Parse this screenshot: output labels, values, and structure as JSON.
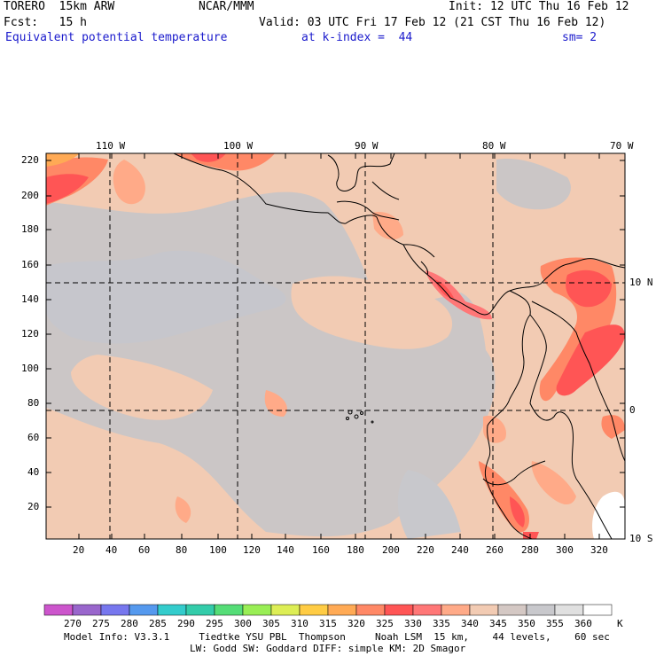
{
  "header": {
    "model": "TORERO  15km ARW",
    "org": "NCAR/MMM",
    "init": "Init: 12 UTC Thu 16 Feb 12",
    "fcst": "Fcst:   15 h",
    "valid": "Valid: 03 UTC Fri 17 Feb 12 (21 CST Thu 16 Feb 12)",
    "field": "Equivalent potential temperature",
    "level": "at k-index =  44",
    "smoothing": "sm= 2"
  },
  "map": {
    "lon_labels": [
      "110 W",
      "100 W",
      "90 W",
      "80 W",
      "70 W"
    ],
    "lat_labels": [
      "10 N",
      "0",
      "10 S"
    ],
    "y_ticks": [
      "220",
      "200",
      "180",
      "160",
      "140",
      "120",
      "100",
      "80",
      "60",
      "40",
      "20"
    ],
    "x_ticks": [
      "20",
      "40",
      "60",
      "80",
      "100",
      "120",
      "140",
      "160",
      "180",
      "200",
      "220",
      "240",
      "260",
      "280",
      "300",
      "320"
    ]
  },
  "colorbar": {
    "labels": [
      "270",
      "275",
      "280",
      "285",
      "290",
      "295",
      "300",
      "305",
      "310",
      "315",
      "320",
      "325",
      "330",
      "335",
      "340",
      "345",
      "350",
      "355",
      "360"
    ],
    "unit": "K",
    "colors": [
      "#cc55cc",
      "#9966cc",
      "#7777ee",
      "#5599ee",
      "#33cccc",
      "#33ccaa",
      "#55dd77",
      "#99ee55",
      "#ddee55",
      "#ffcc44",
      "#ffaa55",
      "#ff8866",
      "#ff5555",
      "#ff7777",
      "#ffaa88",
      "#f2cbb3",
      "#d4c8c4",
      "#c8c8cc",
      "#e0e0e0",
      "#ffffff"
    ]
  },
  "footer": {
    "line1": "Model Info: V3.3.1     Tiedtke YSU PBL  Thompson     Noah LSM  15 km,    44 levels,    60 sec",
    "line2": "LW: Godd SW: Goddard DIFF: simple KM: 2D Smagor"
  }
}
